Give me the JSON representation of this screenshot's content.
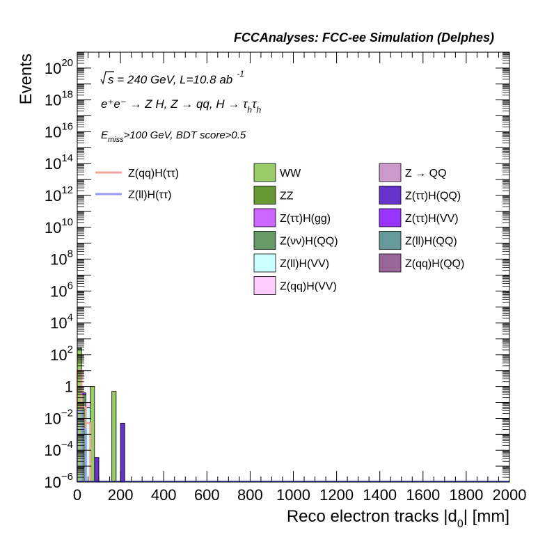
{
  "chart_data": {
    "type": "bar",
    "title": "FCCAnalyses: FCC-ee Simulation (Delphes)",
    "xlabel_main": "Reco electron tracks |d",
    "xlabel_sub": "0",
    "xlabel_end": "| [mm]",
    "ylabel": "Events",
    "xlim": [
      0,
      2000
    ],
    "ylim": [
      1e-06,
      1e+21
    ],
    "ylog": true,
    "x_ticks": [
      {
        "v": 0,
        "label": "0"
      },
      {
        "v": 200,
        "label": "200"
      },
      {
        "v": 400,
        "label": "400"
      },
      {
        "v": 600,
        "label": "600"
      },
      {
        "v": 800,
        "label": "800"
      },
      {
        "v": 1000,
        "label": "1000"
      },
      {
        "v": 1200,
        "label": "1200"
      },
      {
        "v": 1400,
        "label": "1400"
      },
      {
        "v": 1600,
        "label": "1600"
      },
      {
        "v": 1800,
        "label": "1800"
      },
      {
        "v": 2000,
        "label": "2000"
      }
    ],
    "y_ticks": [
      {
        "exp": -6,
        "base": "10",
        "sup": "−6"
      },
      {
        "exp": -4,
        "base": "10",
        "sup": "−4"
      },
      {
        "exp": -2,
        "base": "10",
        "sup": "−2"
      },
      {
        "exp": 0,
        "base": "1",
        "sup": ""
      },
      {
        "exp": 2,
        "base": "10",
        "sup": "2"
      },
      {
        "exp": 4,
        "base": "10",
        "sup": "4"
      },
      {
        "exp": 6,
        "base": "10",
        "sup": "6"
      },
      {
        "exp": 8,
        "base": "10",
        "sup": "8"
      },
      {
        "exp": 10,
        "base": "10",
        "sup": "10"
      },
      {
        "exp": 12,
        "base": "10",
        "sup": "12"
      },
      {
        "exp": 14,
        "base": "10",
        "sup": "14"
      },
      {
        "exp": 16,
        "base": "10",
        "sup": "16"
      },
      {
        "exp": 18,
        "base": "10",
        "sup": "18"
      },
      {
        "exp": 20,
        "base": "10",
        "sup": "20"
      }
    ],
    "grid": false,
    "bin_width": 20,
    "annotations": {
      "energy": "s = 240 GeV, L=10.8 ab",
      "energy_sup": "-1",
      "process": "e⁺e⁻ → Z H, Z → qq, H → τ",
      "process_h1": "h",
      "process_tau2": "τ",
      "process_h2": "h",
      "cut_E": "E",
      "cut_sub": "miss",
      "cut_rest": ">100 GeV, BDT score>0.5"
    },
    "line_series": [
      {
        "name": "Z(qq)H(ττ)",
        "color": "#f5a09a",
        "bins": [
          [
            0,
            20,
            10
          ],
          [
            20,
            40,
            0.05
          ],
          [
            40,
            60,
            0.005
          ]
        ]
      },
      {
        "name": "Z(ll)H(ττ)",
        "color": "#9a9af5",
        "bins": [
          [
            0,
            20,
            0.03
          ],
          [
            20,
            40,
            0.002
          ]
        ]
      }
    ],
    "stacked_series": [
      {
        "name": "WW",
        "color": "#99cc66",
        "bins": [
          [
            0,
            20,
            200
          ],
          [
            60,
            80,
            1
          ],
          [
            160,
            180,
            0.5
          ]
        ]
      },
      {
        "name": "ZZ",
        "color": "#669933",
        "bins": [
          [
            0,
            20,
            60
          ]
        ]
      },
      {
        "name": "Z(ττ)H(gg)",
        "color": "#cc66ff",
        "bins": [
          [
            0,
            20,
            3
          ]
        ]
      },
      {
        "name": "Z(νν)H(QQ)",
        "color": "#669966",
        "bins": [
          [
            0,
            20,
            1e-05
          ],
          [
            20,
            40,
            0.3
          ]
        ]
      },
      {
        "name": "Z(ll)H(VV)",
        "color": "#ccffff",
        "bins": [
          [
            20,
            40,
            0.001
          ],
          [
            40,
            60,
            0.05
          ]
        ]
      },
      {
        "name": "Z(qq)H(VV)",
        "color": "#ffccff",
        "bins": [
          [
            40,
            60,
            0.05
          ]
        ]
      },
      {
        "name": "Z → QQ",
        "color": "#cc99cc",
        "bins": []
      },
      {
        "name": "Z(ττ)H(QQ)",
        "color": "#6633cc",
        "bins": [
          [
            60,
            80,
            3e-05
          ],
          [
            80,
            100,
            3.5e-05
          ],
          [
            200,
            220,
            0.005
          ]
        ]
      },
      {
        "name": "Z(ττ)H(VV)",
        "color": "#9933ff",
        "bins": [
          [
            20,
            40,
            0.1
          ]
        ]
      },
      {
        "name": "Z(ll)H(QQ)",
        "color": "#669999",
        "bins": [
          [
            0,
            20,
            0.1
          ]
        ]
      },
      {
        "name": "Z(qq)H(QQ)",
        "color": "#996699",
        "bins": []
      }
    ],
    "legend_lines": [
      "Z(qq)H(ττ)",
      "Z(ll)H(ττ)"
    ],
    "legend_col1": [
      "WW",
      "ZZ",
      "Z(ττ)H(gg)",
      "Z(νν)H(QQ)",
      "Z(ll)H(VV)",
      "Z(qq)H(VV)"
    ],
    "legend_col2": [
      "Z → QQ",
      "Z(ττ)H(QQ)",
      "Z(ττ)H(VV)",
      "Z(ll)H(QQ)",
      "Z(qq)H(QQ)"
    ]
  }
}
